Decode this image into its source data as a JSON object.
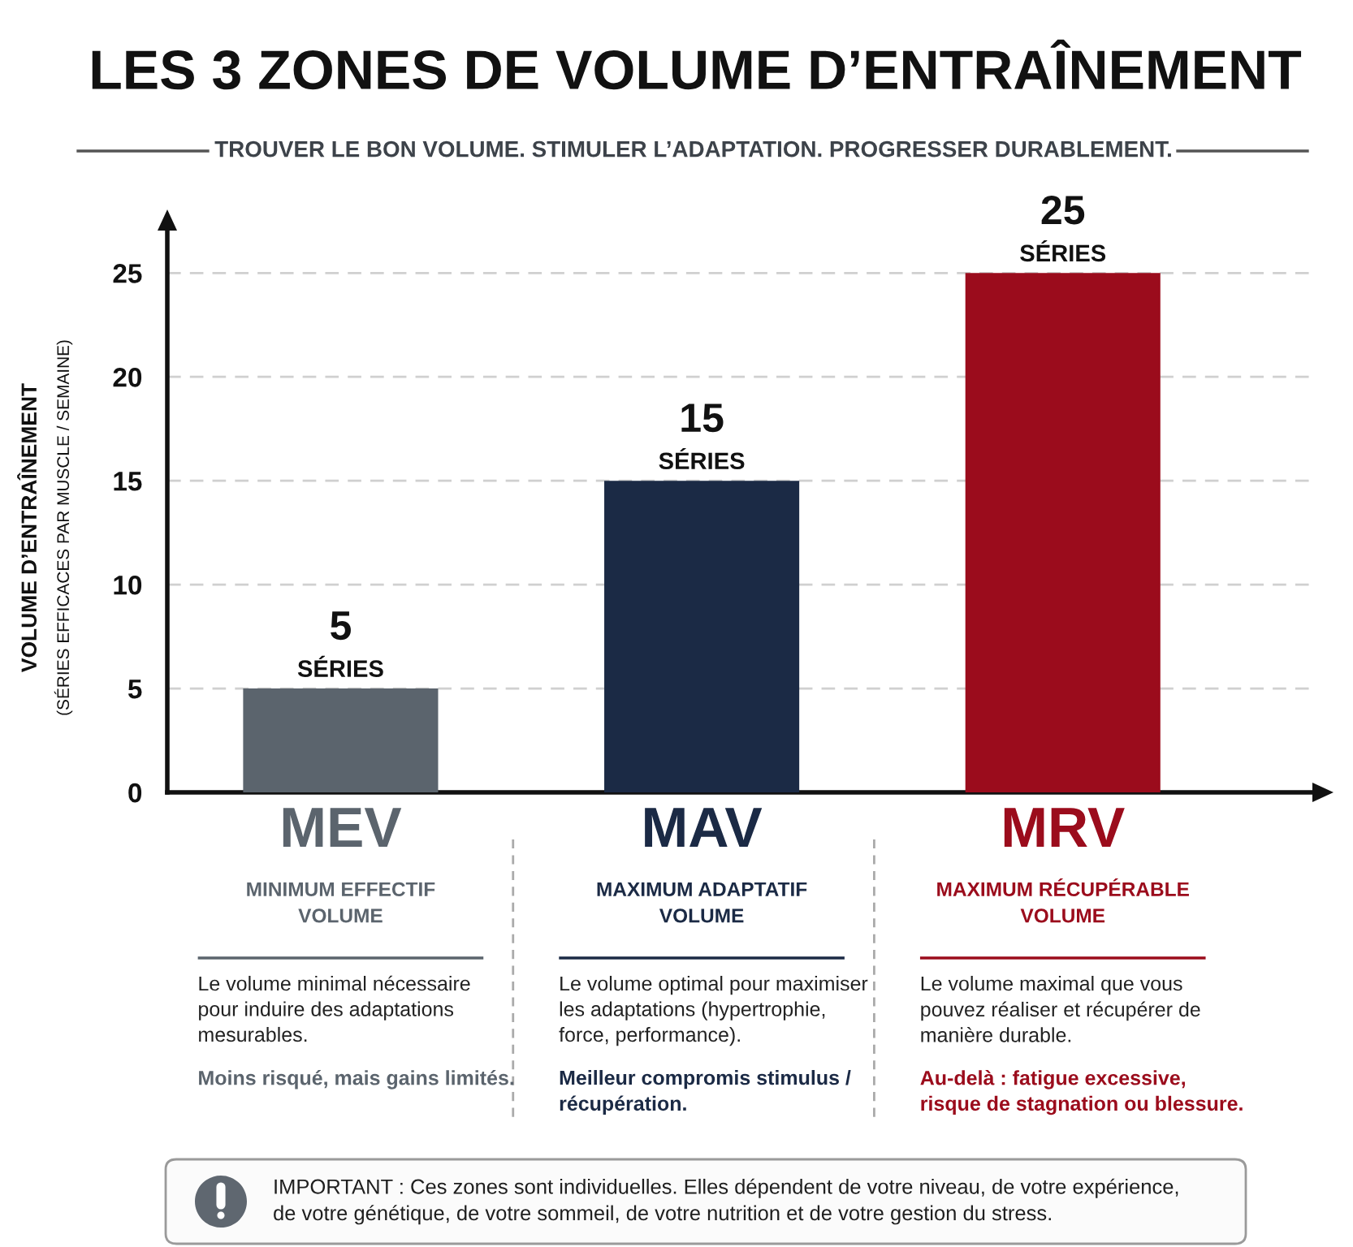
{
  "chart_data": {
    "type": "bar",
    "title": "LES 3 ZONES DE VOLUME D’ENTRAÎNEMENT",
    "subtitle": "TROUVER LE BON VOLUME. STIMULER L’ADAPTATION. PROGRESSER DURABLEMENT.",
    "ylabel": "VOLUME D’ENTRAÎNEMENT\n(SÉRIES EFFICACES PAR MUSCLE / SEMAINE)",
    "categories": [
      "MEV",
      "MAV",
      "MRV"
    ],
    "values": [
      5,
      15,
      25
    ],
    "colors": [
      "#5b646d",
      "#1b2a45",
      "#9b0c1c"
    ],
    "ylim": [
      0,
      27.2
    ],
    "yticks": [
      0,
      5,
      10,
      15,
      20,
      25
    ],
    "grid": "y",
    "data_labels": true,
    "annotations": [
      {
        "text": "SÉRIES",
        "x": "MEV",
        "y": 5
      },
      {
        "text": "SÉRIES",
        "x": "MAV",
        "y": 15
      },
      {
        "text": "SÉRIES",
        "x": "MRV",
        "y": 25
      },
      "MINIMUM EFFECTIF\nVOLUME",
      "Le volume minimal nécessaire\npour induire des adaptations\nmesurables.",
      "Moins risqué, mais gains limités.",
      "MAXIMUM ADAPTATIF\nVOLUME",
      "Le volume optimal pour maximiser\nles adaptations (hypertrophie,\nforce, performance).",
      "Meilleur compromis stimulus /\nrécupération.",
      "MAXIMUM RÉCUPÉRABLE\nVOLUME",
      "Le volume maximal que vous\npouvez réaliser et récupérer de\nmanière durable.",
      "Au-delà : fatigue excessive,\nrisque de stagnation ou blessure.",
      "IMPORTANT : Ces zones sont individuelles. Elles dépendent de votre niveau, de votre expérience,\nde votre génétique, de votre sommeil, de votre nutrition et de votre gestion du stress."
    ]
  }
}
